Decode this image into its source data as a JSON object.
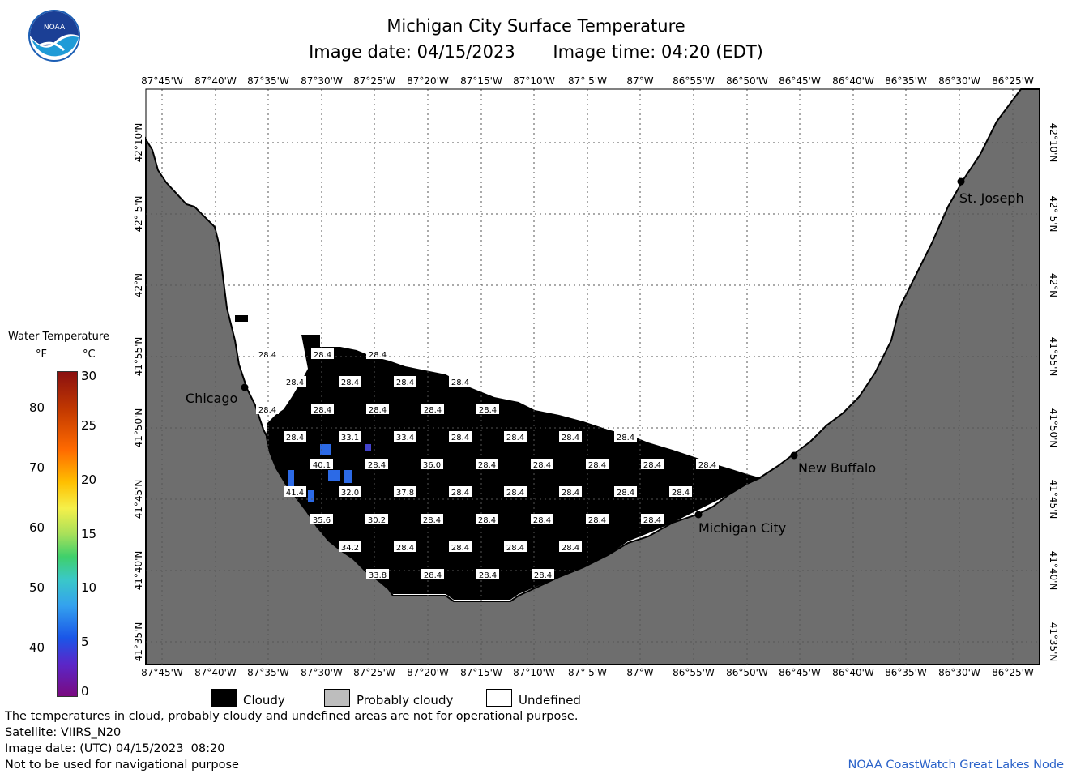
{
  "header": {
    "title": "Michigan City Surface Temperature",
    "image_date": "Image date: 04/15/2023",
    "image_time": "Image time: 04:20 (EDT)"
  },
  "logo": {
    "text": "NOAA"
  },
  "colorbar": {
    "title": "Water Temperature",
    "unit_f": "°F",
    "unit_c": "°C",
    "f_ticks": [
      "40",
      "50",
      "60",
      "70",
      "80"
    ],
    "c_ticks": [
      "0",
      "5",
      "10",
      "15",
      "20",
      "25",
      "30"
    ]
  },
  "map": {
    "lon_labels": [
      "87°45'W",
      "87°40'W",
      "87°35'W",
      "87°30'W",
      "87°25'W",
      "87°20'W",
      "87°15'W",
      "87°10'W",
      "87° 5'W",
      "87°W",
      "86°55'W",
      "86°50'W",
      "86°45'W",
      "86°40'W",
      "86°35'W",
      "86°30'W",
      "86°25'W"
    ],
    "lat_labels": [
      "42°10'N",
      "42° 5'N",
      "42°N",
      "41°55'N",
      "41°50'N",
      "41°45'N",
      "41°40'N",
      "41°35'N"
    ],
    "cities": [
      {
        "name": "Chicago"
      },
      {
        "name": "St. Joseph"
      },
      {
        "name": "New Buffalo"
      },
      {
        "name": "Michigan City"
      }
    ],
    "temperature_labels": [
      {
        "row": 0,
        "values": [
          "28.4",
          "28.4",
          "28.4"
        ]
      },
      {
        "row": 1,
        "values": [
          "28.4",
          "28.4",
          "28.4",
          "28.4"
        ]
      },
      {
        "row": 2,
        "values": [
          "28.4",
          "28.4",
          "28.4",
          "28.4",
          "28.4"
        ]
      },
      {
        "row": 3,
        "values": [
          "28.4",
          "33.1",
          "33.4",
          "28.4",
          "28.4",
          "28.4",
          "28.4"
        ]
      },
      {
        "row": 4,
        "values": [
          "40.1",
          "28.4",
          "36.0",
          "28.4",
          "28.4",
          "28.4",
          "28.4",
          "28.4"
        ]
      },
      {
        "row": 5,
        "values": [
          "41.4",
          "32.0",
          "37.8",
          "28.4",
          "28.4",
          "28.4",
          "28.4",
          "28.4"
        ]
      },
      {
        "row": 6,
        "values": [
          "35.6",
          "30.2",
          "28.4",
          "28.4",
          "28.4",
          "28.4",
          "28.4"
        ]
      },
      {
        "row": 7,
        "values": [
          "34.2",
          "28.4",
          "28.4",
          "28.4",
          "28.4"
        ]
      },
      {
        "row": 8,
        "values": [
          "33.8",
          "28.4",
          "28.4",
          "28.4"
        ]
      }
    ]
  },
  "legend": {
    "cloudy": "Cloudy",
    "probably_cloudy": "Probably cloudy",
    "undefined": "Undefined",
    "colors": {
      "cloudy": "#000000",
      "probably_cloudy": "#bdbdbd",
      "undefined": "#ffffff",
      "land": "#6e6e6e"
    }
  },
  "footer": {
    "line1": "The temperatures in cloud, probably cloudy and undefined areas are not for operational purpose.",
    "line2": "Satellite: VIIRS_N20",
    "line3": "Image date: (UTC) 04/15/2023  08:20",
    "line4": "Not to be used for navigational purpose",
    "credit": "NOAA CoastWatch Great Lakes Node"
  }
}
